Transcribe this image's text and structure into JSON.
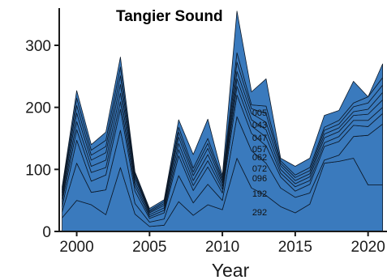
{
  "chart_data": {
    "type": "area",
    "title": "Tangier Sound",
    "xlabel": "Year",
    "ylabel": "",
    "xlim": [
      1998.8,
      2021.3
    ],
    "ylim": [
      0,
      360
    ],
    "xticks": [
      2000,
      2005,
      2010,
      2015,
      2020
    ],
    "xtick_labels": [
      "2000",
      "2005",
      "2010",
      "2015",
      "2020"
    ],
    "yticks": [
      0,
      100,
      200,
      300
    ],
    "ytick_labels": [
      "0",
      "100",
      "200",
      "300"
    ],
    "x": [
      1999,
      2000,
      2001,
      2002,
      2003,
      2004,
      2005,
      2006,
      2007,
      2008,
      2009,
      2010,
      2011,
      2012,
      2013,
      2014,
      2015,
      2016,
      2017,
      2018,
      2019,
      2020,
      2021
    ],
    "stacking": "cumulative",
    "fill_color": "#3a7abd",
    "line_color": "#0d1a2a",
    "series": [
      {
        "name": "292",
        "values": [
          22,
          50,
          43,
          27,
          103,
          28,
          8,
          10,
          48,
          26,
          43,
          35,
          118,
          70,
          58,
          40,
          30,
          44,
          110,
          113,
          118,
          75,
          75
        ]
      },
      {
        "name": "192",
        "values": [
          10,
          60,
          20,
          40,
          60,
          17,
          7,
          10,
          42,
          20,
          33,
          15,
          67,
          60,
          52,
          30,
          25,
          18,
          5,
          10,
          35,
          80,
          98
        ]
      },
      {
        "name": "096",
        "values": [
          8,
          37,
          18,
          24,
          34,
          20,
          6,
          10,
          32,
          20,
          28,
          12,
          35,
          28,
          28,
          18,
          10,
          14,
          22,
          22,
          18,
          14,
          17
        ]
      },
      {
        "name": "072",
        "values": [
          8,
          17,
          14,
          12,
          12,
          8,
          3,
          4,
          10,
          8,
          10,
          6,
          14,
          12,
          14,
          6,
          7,
          6,
          6,
          8,
          8,
          10,
          10
        ]
      },
      {
        "name": "062",
        "values": [
          5,
          13,
          10,
          12,
          14,
          6,
          3,
          4,
          10,
          8,
          10,
          5,
          12,
          10,
          12,
          6,
          5,
          6,
          8,
          8,
          8,
          10,
          12
        ]
      },
      {
        "name": "057",
        "values": [
          5,
          14,
          10,
          12,
          14,
          6,
          3,
          4,
          10,
          8,
          10,
          5,
          12,
          10,
          12,
          6,
          5,
          5,
          6,
          6,
          6,
          8,
          12
        ]
      },
      {
        "name": "047",
        "values": [
          5,
          12,
          8,
          10,
          14,
          4,
          2,
          3,
          8,
          6,
          8,
          4,
          15,
          8,
          14,
          4,
          5,
          5,
          6,
          6,
          8,
          10,
          12
        ]
      },
      {
        "name": "043",
        "values": [
          4,
          12,
          8,
          10,
          14,
          4,
          2,
          3,
          8,
          6,
          8,
          4,
          15,
          6,
          12,
          4,
          4,
          5,
          5,
          6,
          6,
          10,
          12
        ]
      },
      {
        "name": "005",
        "values": [
          5,
          12,
          9,
          13,
          16,
          3,
          3,
          3,
          12,
          22,
          31,
          4,
          67,
          21,
          44,
          4,
          14,
          15,
          19,
          16,
          35,
          0,
          22
        ]
      }
    ]
  }
}
